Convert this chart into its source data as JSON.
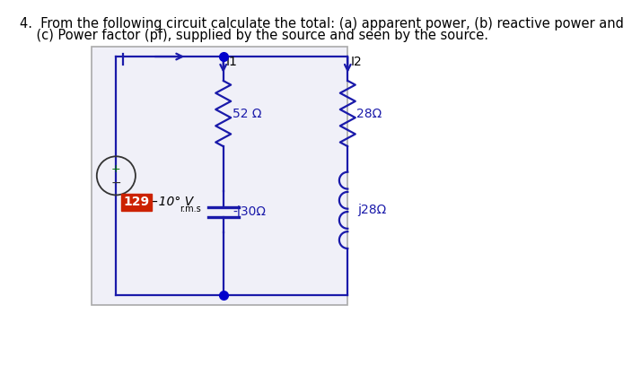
{
  "title_line1": "4.  From the following circuit calculate the total: (a) apparent power, (b) reactive power and",
  "title_line2": "    (c) Power factor (pf), supplied by the source and seen by the source.",
  "bg_color": "#ffffff",
  "circuit_bg": "#f0f0f8",
  "circuit_border": "#aaaaaa",
  "wire_color": "#1a1aaa",
  "dot_color": "#0000cc",
  "label_52": "52 Ω",
  "label_28_top": "28Ω",
  "label_j28": "j28Ω",
  "label_j30": "-j30Ω",
  "label_I1": "I1",
  "label_I2": "I2",
  "label_129": "129",
  "label_angle": "−10° V",
  "label_rms": "r.m.s",
  "source_bg": "#cc2200",
  "source_text_color": "#ffffff",
  "plus_color": "#007700",
  "minus_color": "#333333",
  "source_circle_color": "#333333",
  "component_label_color": "#1a1aaa"
}
